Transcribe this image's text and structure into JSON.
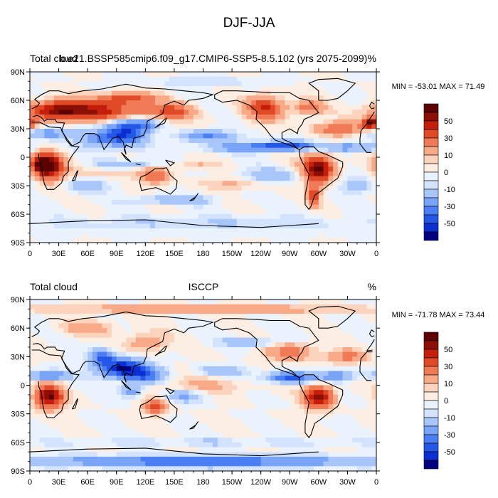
{
  "main_title": "DJF-JJA",
  "chart_data": [
    {
      "type": "heatmap",
      "title_left": "Total cloud",
      "title_center": "b.e21.BSSP585cmip6.f09_g17.CMIP6-SSP5-8.5.102 (yrs 2075-2099)",
      "title_right": "%",
      "minmax": "MIN = -53.01 MAX =  71.49",
      "x_ticks": [
        "0",
        "30E",
        "60E",
        "90E",
        "120E",
        "150E",
        "180",
        "150W",
        "120W",
        "90W",
        "60W",
        "30W",
        "0"
      ],
      "y_ticks": [
        "90N",
        "60N",
        "30N",
        "0",
        "30S",
        "60S",
        "90S"
      ],
      "xlim": [
        0,
        360
      ],
      "ylim": [
        -90,
        90
      ],
      "features": [
        {
          "lon": 80,
          "lat": 48,
          "rx": 60,
          "ry": 10,
          "v": 42
        },
        {
          "lon": 30,
          "lat": 50,
          "rx": 30,
          "ry": 10,
          "v": 45
        },
        {
          "lon": 100,
          "lat": 62,
          "rx": 30,
          "ry": 6,
          "v": 35
        },
        {
          "lon": 150,
          "lat": 48,
          "rx": 20,
          "ry": 8,
          "v": 25
        },
        {
          "lon": 245,
          "lat": 52,
          "rx": 20,
          "ry": 12,
          "v": 42
        },
        {
          "lon": 290,
          "lat": 52,
          "rx": 14,
          "ry": 8,
          "v": 30
        },
        {
          "lon": 320,
          "lat": 30,
          "rx": 25,
          "ry": 7,
          "v": 30
        },
        {
          "lon": 355,
          "lat": 36,
          "rx": 10,
          "ry": 6,
          "v": 55
        },
        {
          "lon": 20,
          "lat": -10,
          "rx": 15,
          "ry": 14,
          "v": 60
        },
        {
          "lon": 12,
          "lat": -8,
          "rx": 12,
          "ry": 8,
          "v": 40
        },
        {
          "lon": 130,
          "lat": -20,
          "rx": 15,
          "ry": 8,
          "v": 25
        },
        {
          "lon": 170,
          "lat": -8,
          "rx": 25,
          "ry": 4,
          "v": 10
        },
        {
          "lon": 300,
          "lat": -12,
          "rx": 16,
          "ry": 15,
          "v": 62
        },
        {
          "lon": 295,
          "lat": -40,
          "rx": 6,
          "ry": 10,
          "v": 40
        },
        {
          "lon": 90,
          "lat": -15,
          "rx": 50,
          "ry": 8,
          "v": 10
        },
        {
          "lon": 215,
          "lat": -28,
          "rx": 40,
          "ry": 6,
          "v": 12
        },
        {
          "lon": 100,
          "lat": 28,
          "rx": 20,
          "ry": 15,
          "v": -45
        },
        {
          "lon": 75,
          "lat": 20,
          "rx": 25,
          "ry": 10,
          "v": -30
        },
        {
          "lon": 120,
          "lat": 35,
          "rx": 15,
          "ry": 7,
          "v": -25
        },
        {
          "lon": 20,
          "lat": 25,
          "rx": 25,
          "ry": 6,
          "v": -25
        },
        {
          "lon": 185,
          "lat": 22,
          "rx": 30,
          "ry": 6,
          "v": -30
        },
        {
          "lon": 220,
          "lat": 10,
          "rx": 40,
          "ry": 5,
          "v": -25
        },
        {
          "lon": 265,
          "lat": 12,
          "rx": 30,
          "ry": 5,
          "v": -45
        },
        {
          "lon": 330,
          "lat": 10,
          "rx": 30,
          "ry": 5,
          "v": -30
        },
        {
          "lon": 100,
          "lat": -8,
          "rx": 30,
          "ry": 5,
          "v": -25
        },
        {
          "lon": 60,
          "lat": -30,
          "rx": 20,
          "ry": 8,
          "v": -20
        },
        {
          "lon": 150,
          "lat": -45,
          "rx": 40,
          "ry": 5,
          "v": -20
        },
        {
          "lon": 250,
          "lat": -20,
          "rx": 30,
          "ry": 8,
          "v": -20
        },
        {
          "lon": 340,
          "lat": -30,
          "rx": 20,
          "ry": 8,
          "v": -15
        },
        {
          "lon": 180,
          "lat": -70,
          "rx": 180,
          "ry": 8,
          "v": -10
        },
        {
          "lon": 180,
          "lat": 80,
          "rx": 60,
          "ry": 5,
          "v": -10
        }
      ]
    },
    {
      "type": "heatmap",
      "title_left": "Total cloud",
      "title_center": "ISCCP",
      "title_right": "%",
      "minmax": "MIN = -71.78 MAX =  73.44",
      "x_ticks": [
        "0",
        "30E",
        "60E",
        "90E",
        "120E",
        "150E",
        "180",
        "150W",
        "120W",
        "90W",
        "60W",
        "30W",
        "0"
      ],
      "y_ticks": [
        "90N",
        "60N",
        "30N",
        "0",
        "30S",
        "60S",
        "90S"
      ],
      "xlim": [
        0,
        360
      ],
      "ylim": [
        -90,
        90
      ],
      "features": [
        {
          "lon": 20,
          "lat": -12,
          "rx": 14,
          "ry": 12,
          "v": 62
        },
        {
          "lon": 130,
          "lat": -22,
          "rx": 12,
          "ry": 8,
          "v": 35
        },
        {
          "lon": 300,
          "lat": -12,
          "rx": 15,
          "ry": 12,
          "v": 55
        },
        {
          "lon": 270,
          "lat": 35,
          "rx": 25,
          "ry": 10,
          "v": 25
        },
        {
          "lon": 330,
          "lat": 30,
          "rx": 20,
          "ry": 7,
          "v": 25
        },
        {
          "lon": 120,
          "lat": 45,
          "rx": 20,
          "ry": 10,
          "v": 20
        },
        {
          "lon": 60,
          "lat": 60,
          "rx": 30,
          "ry": 8,
          "v": 15
        },
        {
          "lon": 180,
          "lat": 80,
          "rx": 180,
          "ry": 4,
          "v": 20
        },
        {
          "lon": 180,
          "lat": 0,
          "rx": 60,
          "ry": 8,
          "v": 10
        },
        {
          "lon": 95,
          "lat": 18,
          "rx": 25,
          "ry": 10,
          "v": -60
        },
        {
          "lon": 75,
          "lat": 30,
          "rx": 12,
          "ry": 8,
          "v": -35
        },
        {
          "lon": 20,
          "lat": 10,
          "rx": 20,
          "ry": 5,
          "v": -40
        },
        {
          "lon": 120,
          "lat": 10,
          "rx": 20,
          "ry": 8,
          "v": -35
        },
        {
          "lon": 270,
          "lat": 8,
          "rx": 25,
          "ry": 6,
          "v": -45
        },
        {
          "lon": 320,
          "lat": 10,
          "rx": 20,
          "ry": 6,
          "v": -30
        },
        {
          "lon": 200,
          "lat": 15,
          "rx": 25,
          "ry": 5,
          "v": -20
        },
        {
          "lon": 105,
          "lat": -6,
          "rx": 12,
          "ry": 6,
          "v": -30
        },
        {
          "lon": 160,
          "lat": -12,
          "rx": 20,
          "ry": 6,
          "v": -20
        },
        {
          "lon": 230,
          "lat": 45,
          "rx": 30,
          "ry": 5,
          "v": -20
        },
        {
          "lon": 180,
          "lat": -80,
          "rx": 180,
          "ry": 6,
          "v": -40
        },
        {
          "lon": 180,
          "lat": -60,
          "rx": 180,
          "ry": 4,
          "v": -10
        }
      ]
    }
  ],
  "colorbar": {
    "labels": [
      "50",
      "30",
      "10",
      "0",
      "-10",
      "-30",
      "-50"
    ],
    "levels": [
      -60,
      -50,
      -40,
      -30,
      -20,
      -10,
      -5,
      0,
      5,
      10,
      20,
      30,
      40,
      50,
      60
    ],
    "colors": [
      "#000080",
      "#0b2fd0",
      "#2456e8",
      "#4a7ef4",
      "#7aa4f8",
      "#a9c6fb",
      "#d3e3fd",
      "#eaf2fe",
      "#fdeee3",
      "#fcd3bc",
      "#f8a988",
      "#f07a55",
      "#e04a26",
      "#c51f0c",
      "#8b0f05",
      "#5c0202"
    ]
  }
}
